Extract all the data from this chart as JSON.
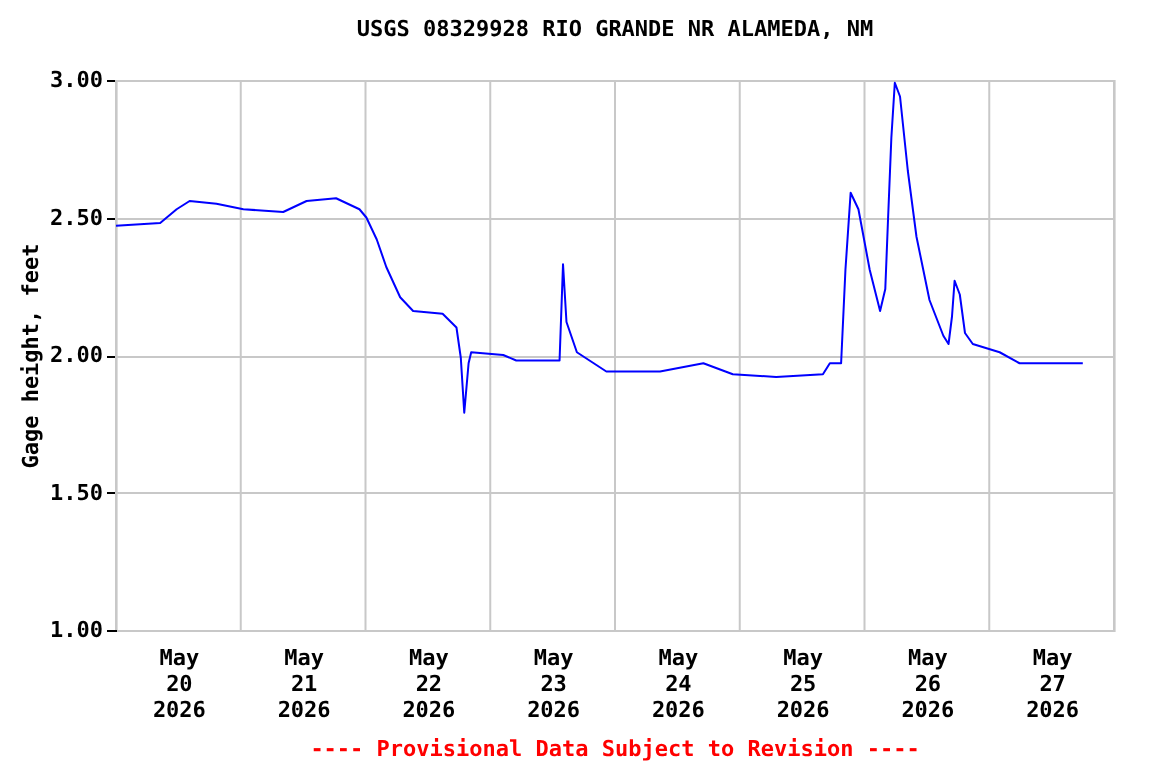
{
  "chart_data": {
    "type": "line",
    "title": "USGS 08329928 RIO GRANDE NR ALAMEDA, NM",
    "ylabel": "Gage height, feet",
    "annotations": [
      "---- Provisional Data Subject to Revision ----"
    ],
    "x": [
      "2026-05-20T00:00",
      "2026-05-20T08:30",
      "2026-05-20T11:40",
      "2026-05-20T14:10",
      "2026-05-20T19:20",
      "2026-05-21T00:30",
      "2026-05-21T08:10",
      "2026-05-21T12:40",
      "2026-05-21T18:20",
      "2026-05-21T22:50",
      "2026-05-22T00:10",
      "2026-05-22T02:10",
      "2026-05-22T04:00",
      "2026-05-22T06:40",
      "2026-05-22T09:10",
      "2026-05-22T14:50",
      "2026-05-22T17:30",
      "2026-05-22T18:20",
      "2026-05-22T19:00",
      "2026-05-22T19:50",
      "2026-05-22T20:20",
      "2026-05-23T02:30",
      "2026-05-23T05:00",
      "2026-05-23T13:20",
      "2026-05-23T14:00",
      "2026-05-23T14:40",
      "2026-05-23T16:40",
      "2026-05-23T22:20",
      "2026-05-24T08:40",
      "2026-05-24T17:00",
      "2026-05-24T22:40",
      "2026-05-25T07:00",
      "2026-05-25T16:00",
      "2026-05-25T17:20",
      "2026-05-25T19:30",
      "2026-05-25T20:20",
      "2026-05-25T21:20",
      "2026-05-25T22:50",
      "2026-05-26T01:00",
      "2026-05-26T03:00",
      "2026-05-26T04:00",
      "2026-05-26T04:30",
      "2026-05-26T05:10",
      "2026-05-26T05:50",
      "2026-05-26T06:50",
      "2026-05-26T08:20",
      "2026-05-26T10:00",
      "2026-05-26T12:30",
      "2026-05-26T15:10",
      "2026-05-26T16:10",
      "2026-05-26T16:50",
      "2026-05-26T17:20",
      "2026-05-26T18:20",
      "2026-05-26T19:20",
      "2026-05-26T20:50",
      "2026-05-27T02:00",
      "2026-05-27T05:50",
      "2026-05-27T14:50",
      "2026-05-27T18:00"
    ],
    "series": [
      {
        "color": "#0000ff",
        "values": [
          2.47,
          2.48,
          2.53,
          2.56,
          2.55,
          2.53,
          2.52,
          2.56,
          2.57,
          2.53,
          2.5,
          2.42,
          2.32,
          2.21,
          2.16,
          2.15,
          2.1,
          1.99,
          1.79,
          1.97,
          2.01,
          2.0,
          1.98,
          1.98,
          2.33,
          2.12,
          2.01,
          1.94,
          1.94,
          1.97,
          1.93,
          1.92,
          1.93,
          1.97,
          1.97,
          2.31,
          2.59,
          2.53,
          2.31,
          2.16,
          2.24,
          2.48,
          2.79,
          2.99,
          2.94,
          2.67,
          2.43,
          2.2,
          2.07,
          2.04,
          2.14,
          2.27,
          2.22,
          2.08,
          2.04,
          2.01,
          1.97,
          1.97,
          1.97
        ]
      }
    ],
    "xlim": [
      "2026-05-20T00:00",
      "2026-05-28T00:00"
    ],
    "xticks": [
      {
        "value": "2026-05-20T00:00",
        "label": null
      },
      {
        "value": "2026-05-20T12:00",
        "label": "May 20 2026"
      },
      {
        "value": "2026-05-21T00:00",
        "label": null
      },
      {
        "value": "2026-05-21T12:00",
        "label": "May 21 2026"
      },
      {
        "value": "2026-05-22T00:00",
        "label": null
      },
      {
        "value": "2026-05-22T12:00",
        "label": "May 22 2026"
      },
      {
        "value": "2026-05-23T00:00",
        "label": null
      },
      {
        "value": "2026-05-23T12:00",
        "label": "May 23 2026"
      },
      {
        "value": "2026-05-24T00:00",
        "label": null
      },
      {
        "value": "2026-05-24T12:00",
        "label": "May 24 2026"
      },
      {
        "value": "2026-05-25T00:00",
        "label": null
      },
      {
        "value": "2026-05-25T12:00",
        "label": "May 25 2026"
      },
      {
        "value": "2026-05-26T00:00",
        "label": null
      },
      {
        "value": "2026-05-26T12:00",
        "label": "May 26 2026"
      },
      {
        "value": "2026-05-27T00:00",
        "label": null
      },
      {
        "value": "2026-05-27T12:00",
        "label": "May 27 2026"
      },
      {
        "value": "2026-05-28T00:00",
        "label": null
      }
    ],
    "ylim": [
      1.0,
      3.0
    ],
    "yticks": [
      {
        "value": 1.0,
        "label": "1.00"
      },
      {
        "value": 1.5,
        "label": "1.50"
      },
      {
        "value": 2.0,
        "label": "2.00"
      },
      {
        "value": 2.5,
        "label": "2.50"
      },
      {
        "value": 3.0,
        "label": "3.00"
      }
    ],
    "grid": true,
    "legend": false,
    "marker": "none",
    "line_style": "solid"
  }
}
